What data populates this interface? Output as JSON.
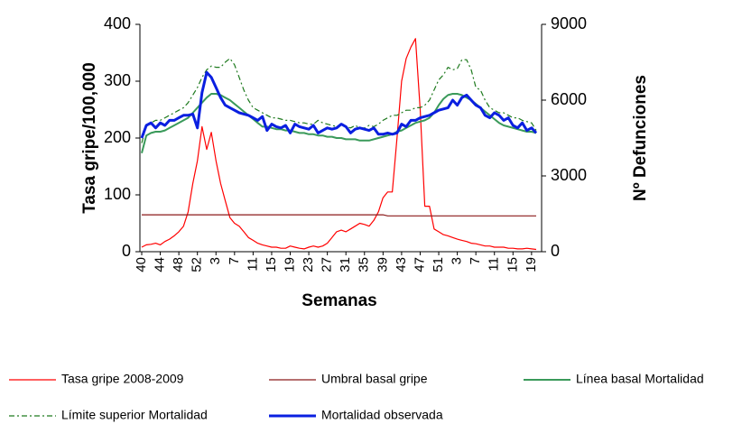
{
  "chart_data": {
    "type": "line",
    "x_label": "Semanas",
    "y_label": "Tasa gripe/100,000",
    "y2_label": "Nº Defunciones",
    "categories": [
      "40",
      null,
      null,
      null,
      "44",
      null,
      null,
      null,
      "48",
      null,
      null,
      null,
      "52",
      null,
      null,
      null,
      "3",
      null,
      null,
      null,
      "7",
      null,
      null,
      null,
      "11",
      null,
      null,
      null,
      "15",
      null,
      null,
      null,
      "19",
      null,
      null,
      null,
      "23",
      null,
      null,
      null,
      "27",
      null,
      null,
      null,
      "31",
      null,
      null,
      null,
      "35",
      null,
      null,
      null,
      "39",
      null,
      null,
      null,
      "43",
      null,
      null,
      null,
      "47",
      null,
      null,
      null,
      "51",
      null,
      null,
      null,
      "3",
      null,
      null,
      null,
      "7",
      null,
      null,
      null,
      "11",
      null,
      null,
      null,
      "15",
      null,
      null,
      null,
      "19",
      null
    ],
    "ylim": [
      0,
      400
    ],
    "yticks": [
      0,
      100,
      200,
      300,
      400
    ],
    "y2lim": [
      0,
      9000
    ],
    "y2ticks": [
      0,
      3000,
      6000,
      9000
    ],
    "grid": false,
    "legend": "bottom",
    "series": [
      {
        "name": "Tasa gripe 2008-2009",
        "color": "#ff0000",
        "width": 1.2,
        "style": "solid",
        "values": [
          8,
          12,
          13,
          15,
          12,
          18,
          22,
          28,
          35,
          45,
          70,
          120,
          160,
          220,
          180,
          210,
          160,
          120,
          90,
          60,
          50,
          45,
          35,
          25,
          20,
          15,
          12,
          10,
          8,
          8,
          6,
          6,
          10,
          8,
          6,
          5,
          8,
          10,
          8,
          10,
          15,
          25,
          35,
          38,
          35,
          40,
          45,
          50,
          48,
          45,
          55,
          70,
          95,
          105,
          105,
          200,
          300,
          340,
          360,
          375,
          250,
          80,
          80,
          40,
          35,
          30,
          28,
          25,
          22,
          20,
          18,
          15,
          14,
          12,
          10,
          10,
          8,
          8,
          8,
          6,
          6,
          5,
          5,
          6,
          5,
          4
        ]
      },
      {
        "name": "Umbral basal gripe",
        "color": "#8b1a1a",
        "width": 1.2,
        "style": "solid",
        "values": [
          65,
          65,
          65,
          65,
          65,
          65,
          65,
          65,
          65,
          65,
          65,
          65,
          65,
          65,
          65,
          65,
          65,
          65,
          65,
          65,
          65,
          65,
          65,
          65,
          65,
          65,
          65,
          65,
          65,
          65,
          65,
          65,
          65,
          65,
          65,
          65,
          65,
          65,
          65,
          65,
          65,
          65,
          65,
          65,
          65,
          65,
          65,
          65,
          65,
          65,
          65,
          65,
          65,
          63,
          63,
          63,
          63,
          63,
          63,
          63,
          63,
          63,
          63,
          63,
          63,
          63,
          63,
          63,
          63,
          63,
          63,
          63,
          63,
          63,
          63,
          63,
          63,
          63,
          63,
          63,
          63,
          63,
          63,
          63,
          63,
          63
        ]
      },
      {
        "name": "Línea basal Mortalidad",
        "color": "#3a9a5a",
        "width": 2,
        "style": "solid",
        "axis": "y2",
        "values": [
          3900,
          4600,
          4700,
          4750,
          4750,
          4800,
          4900,
          5000,
          5100,
          5200,
          5300,
          5500,
          5700,
          5900,
          6100,
          6250,
          6250,
          6200,
          6100,
          6000,
          5850,
          5700,
          5550,
          5400,
          5250,
          5100,
          4950,
          4950,
          4900,
          4850,
          4850,
          4800,
          4800,
          4750,
          4700,
          4700,
          4650,
          4650,
          4600,
          4600,
          4550,
          4550,
          4500,
          4500,
          4450,
          4450,
          4450,
          4400,
          4400,
          4400,
          4450,
          4500,
          4550,
          4600,
          4650,
          4750,
          4800,
          4900,
          5000,
          5100,
          5150,
          5200,
          5300,
          5500,
          5800,
          6050,
          6200,
          6250,
          6250,
          6200,
          6100,
          6000,
          5850,
          5700,
          5550,
          5400,
          5250,
          5100,
          5000,
          4950,
          4900,
          4850,
          4800,
          4750,
          4750,
          4700
        ]
      },
      {
        "name": "Límite superior Mortalidad",
        "color": "#1e7a1e",
        "width": 1.2,
        "style": "dash-dot",
        "axis": "y2",
        "values": [
          4300,
          5000,
          5100,
          5200,
          5200,
          5300,
          5400,
          5500,
          5600,
          5700,
          5900,
          6200,
          6500,
          6900,
          7200,
          7350,
          7300,
          7300,
          7500,
          7650,
          7400,
          6900,
          6400,
          6000,
          5700,
          5600,
          5500,
          5400,
          5300,
          5300,
          5250,
          5200,
          5200,
          5150,
          5100,
          5100,
          5050,
          5050,
          5200,
          5100,
          5050,
          5000,
          4950,
          5050,
          4950,
          4900,
          5000,
          4900,
          4900,
          5000,
          4950,
          5050,
          5200,
          5300,
          5400,
          5400,
          5500,
          5600,
          5600,
          5700,
          5700,
          5800,
          6000,
          6400,
          6800,
          7000,
          7300,
          7200,
          7250,
          7600,
          7600,
          7200,
          6500,
          6400,
          6000,
          5700,
          5600,
          5500,
          5500,
          5400,
          5300,
          5300,
          5200,
          5150,
          5100,
          4800
        ]
      },
      {
        "name": "Mortalidad observada",
        "color": "#0a1fe0",
        "width": 3,
        "style": "solid",
        "axis": "y2",
        "values": [
          4500,
          5000,
          5100,
          4900,
          5100,
          5000,
          5200,
          5200,
          5300,
          5400,
          5400,
          5450,
          4900,
          6300,
          7100,
          6900,
          6500,
          6100,
          5800,
          5700,
          5600,
          5500,
          5450,
          5400,
          5300,
          5200,
          5350,
          4800,
          5050,
          4950,
          4900,
          5000,
          4700,
          5050,
          4950,
          4900,
          4850,
          5000,
          4700,
          4800,
          4900,
          4850,
          4900,
          5050,
          4950,
          4700,
          4850,
          4900,
          4850,
          4800,
          4900,
          4650,
          4650,
          4700,
          4650,
          4700,
          5050,
          4950,
          5200,
          5200,
          5300,
          5350,
          5400,
          5500,
          5600,
          5650,
          5700,
          6000,
          5800,
          6100,
          6200,
          6000,
          5800,
          5700,
          5400,
          5300,
          5500,
          5400,
          5200,
          5300,
          5000,
          4900,
          5100,
          4800,
          4900,
          4700
        ]
      }
    ]
  }
}
